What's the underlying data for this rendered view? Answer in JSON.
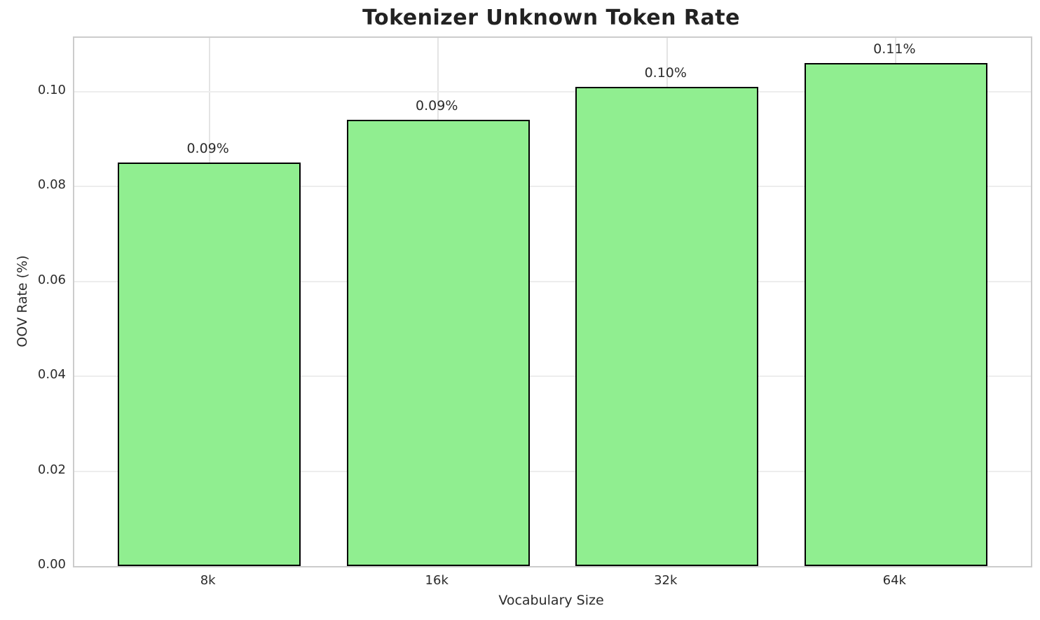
{
  "chart_data": {
    "type": "bar",
    "title": "Tokenizer Unknown Token Rate",
    "xlabel": "Vocabulary Size",
    "ylabel": "OOV Rate (%)",
    "categories": [
      "8k",
      "16k",
      "32k",
      "64k"
    ],
    "values": [
      0.085,
      0.094,
      0.101,
      0.106
    ],
    "bar_labels": [
      "0.09%",
      "0.09%",
      "0.10%",
      "0.11%"
    ],
    "yticks": [
      0.0,
      0.02,
      0.04,
      0.06,
      0.08,
      0.1
    ],
    "ytick_labels": [
      "0.00",
      "0.02",
      "0.04",
      "0.06",
      "0.08",
      "0.10"
    ],
    "ylim": [
      0,
      0.1113
    ],
    "grid": true,
    "legend_position": "none",
    "bar_color": "#90EE90",
    "bar_edge_color": "#000000",
    "grid_color": "#ededed",
    "spine_color": "#cccccc",
    "text_color": "#2b2b2b"
  }
}
